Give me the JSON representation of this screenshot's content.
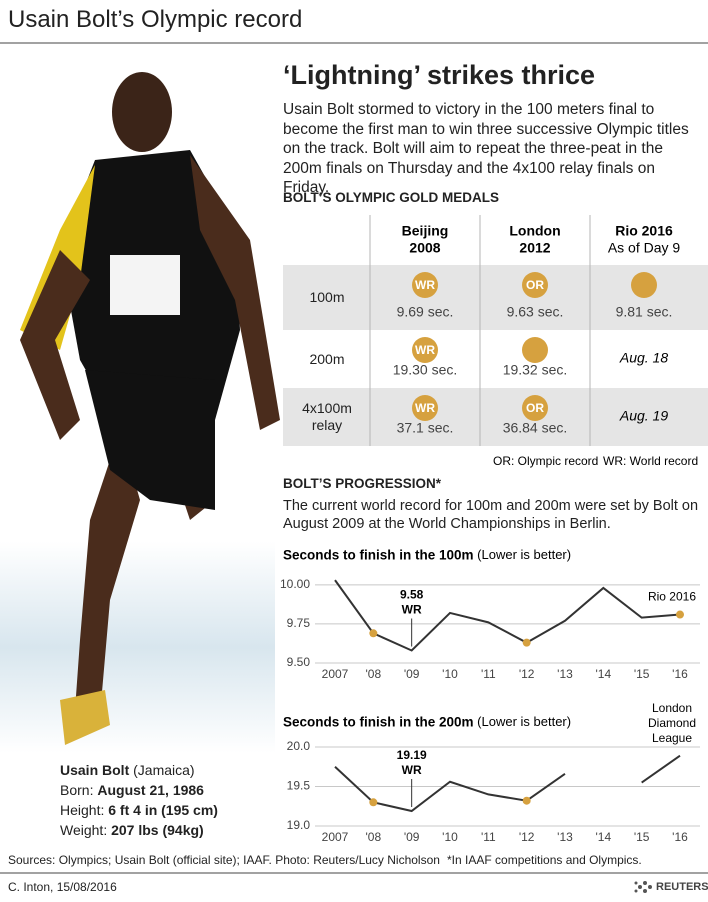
{
  "header": {
    "title": "Usain Bolt’s Olympic record"
  },
  "intro": {
    "headline": "‘Lightning’ strikes thrice",
    "text": "Usain Bolt stormed to victory in the 100 meters final to become the first man to win three successive Olympic titles on the track. Bolt will aim to repeat the three-peat in the 200m finals on Thursday and the 4x100 relay finals on Friday."
  },
  "medals": {
    "title": "BOLT’S OLYMPIC GOLD MEDALS",
    "medal_color": "#d6a13f",
    "columns": [
      {
        "title": "Beijing",
        "subtitle": "2008"
      },
      {
        "title": "London",
        "subtitle": "2012"
      },
      {
        "title": "Rio 2016",
        "subtitle": "As of Day 9"
      }
    ],
    "rows": [
      {
        "event": "100m",
        "cells": [
          {
            "badge": "WR",
            "time": "9.69 sec."
          },
          {
            "badge": "OR",
            "time": "9.63 sec."
          },
          {
            "time": "9.81 sec."
          }
        ]
      },
      {
        "event": "200m",
        "cells": [
          {
            "badge": "WR",
            "time": "19.30 sec."
          },
          {
            "time": "19.32 sec."
          },
          {
            "date": "Aug. 18"
          }
        ]
      },
      {
        "event": "4x100m relay",
        "cells": [
          {
            "badge": "WR",
            "time": "37.1 sec."
          },
          {
            "badge": "OR",
            "time": "36.84 sec."
          },
          {
            "date": "Aug. 19"
          }
        ]
      }
    ],
    "legend": [
      "OR: Olympic record",
      "WR: World record"
    ]
  },
  "progression": {
    "title": "BOLT’S PROGRESSION*",
    "text": "The current world record for 100m and 200m were set by Bolt on August 2009 at the World Championships in Berlin."
  },
  "chart_data": [
    {
      "type": "line",
      "title": "Seconds to finish in the 100m",
      "subtitle": "(Lower is better)",
      "categories": [
        "2007",
        "'08",
        "'09",
        "'10",
        "'11",
        "'12",
        "'13",
        "'14",
        "'15",
        "'16"
      ],
      "values": [
        10.03,
        9.69,
        9.58,
        9.82,
        9.76,
        9.63,
        9.77,
        9.98,
        9.79,
        9.81
      ],
      "color": "#333333",
      "marker_colors": [
        null,
        "#d6a13f",
        null,
        null,
        null,
        "#d6a13f",
        null,
        null,
        null,
        "#d6a13f"
      ],
      "ylim": [
        9.5,
        10.05
      ],
      "yticks": [
        {
          "value": 9.5,
          "label": "9.50"
        },
        {
          "value": 9.75,
          "label": "9.75"
        },
        {
          "value": 10,
          "label": "10.00"
        }
      ],
      "grid": true,
      "annotations": [
        {
          "x": "'09",
          "lines": [
            "9.58",
            "WR"
          ],
          "leader": true
        },
        {
          "x": "'16",
          "lines": [
            "Rio 2016"
          ]
        }
      ]
    },
    {
      "type": "line",
      "title": "Seconds to finish in the 200m",
      "subtitle": "(Lower is better)",
      "categories": [
        "2007",
        "'08",
        "'09",
        "'10",
        "'11",
        "'12",
        "'13",
        "'14",
        "'15",
        "'16"
      ],
      "values": [
        19.75,
        19.3,
        19.19,
        19.56,
        19.4,
        19.32,
        19.66,
        null,
        19.55,
        19.89
      ],
      "color": "#333333",
      "marker_colors": [
        null,
        "#d6a13f",
        null,
        null,
        null,
        "#d6a13f",
        null,
        null,
        null,
        null
      ],
      "ylim": [
        19.0,
        20.0
      ],
      "yticks": [
        {
          "value": 19,
          "label": "19.0"
        },
        19.5,
        {
          "value": 20,
          "label": "20.0"
        }
      ],
      "grid": true,
      "annotations": [
        {
          "x": "'09",
          "lines": [
            "19.19",
            "WR"
          ],
          "leader": true
        },
        {
          "x": "'16",
          "lines": [
            "London",
            "Diamond",
            "League"
          ]
        }
      ]
    }
  ],
  "profile": {
    "name": "Usain Bolt",
    "country": "(Jamaica)",
    "facts": [
      {
        "label": "Born:",
        "value": "August 21, 1986"
      },
      {
        "label": "Height:",
        "value": "6 ft 4 in (195 cm)"
      },
      {
        "label": "Weight:",
        "value": "207 lbs (94kg)"
      }
    ]
  },
  "footer": {
    "sources": "Sources: Olympics; Usain Bolt (official site); IAAF. Photo: Reuters/Lucy Nicholson",
    "note": "*In IAAF competitions and Olympics.",
    "credit": "C. Inton, 15/08/2016",
    "brand": "REUTERS"
  }
}
